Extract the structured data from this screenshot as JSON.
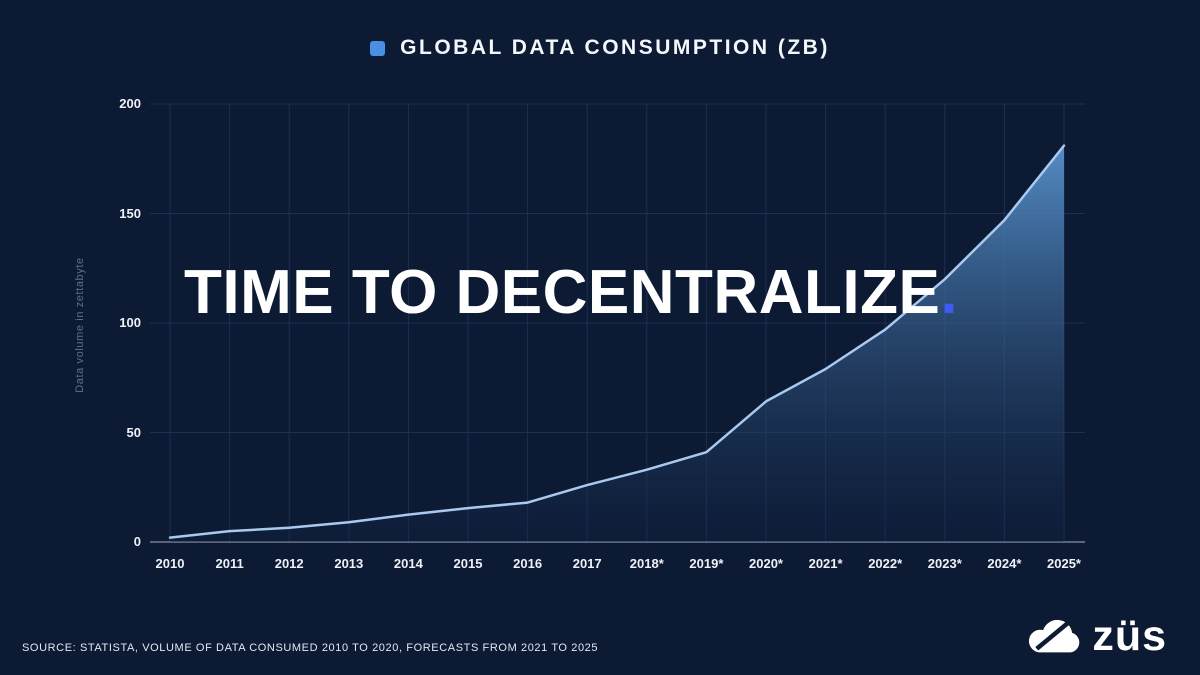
{
  "header": {
    "title": "GLOBAL DATA CONSUMPTION (ZB)",
    "legend_color": "#4a90e2"
  },
  "overlay": {
    "headline": "TIME TO DECENTRALIZE",
    "period": ".",
    "period_color": "#3e5bf0"
  },
  "chart_data": {
    "type": "area",
    "title": "GLOBAL DATA CONSUMPTION (ZB)",
    "ylabel": "Data volume in zettabyte",
    "categories": [
      "2010",
      "2011",
      "2012",
      "2013",
      "2014",
      "2015",
      "2016",
      "2017",
      "2018*",
      "2019*",
      "2020*",
      "2021*",
      "2022*",
      "2023*",
      "2024*",
      "2025*"
    ],
    "values": [
      2,
      5,
      6.5,
      9,
      12.5,
      15.5,
      18,
      26,
      33,
      41,
      64.2,
      79,
      97,
      120,
      147,
      181
    ],
    "ylim": [
      0,
      200
    ],
    "yticks": [
      0,
      50,
      100,
      150,
      200
    ],
    "grid": true,
    "legend_position": "top",
    "colors": {
      "line": "#a9c9ef",
      "fill_top": "#5a96d2",
      "fill_bottom": "#0f2242",
      "grid": "#1d2f54",
      "axis": "#a6b0c3"
    }
  },
  "footer": {
    "source": "SOURCE: STATISTA, VOLUME OF DATA CONSUMED 2010 TO 2020, FORECASTS FROM 2021 TO 2025",
    "logo_text": "züs"
  }
}
